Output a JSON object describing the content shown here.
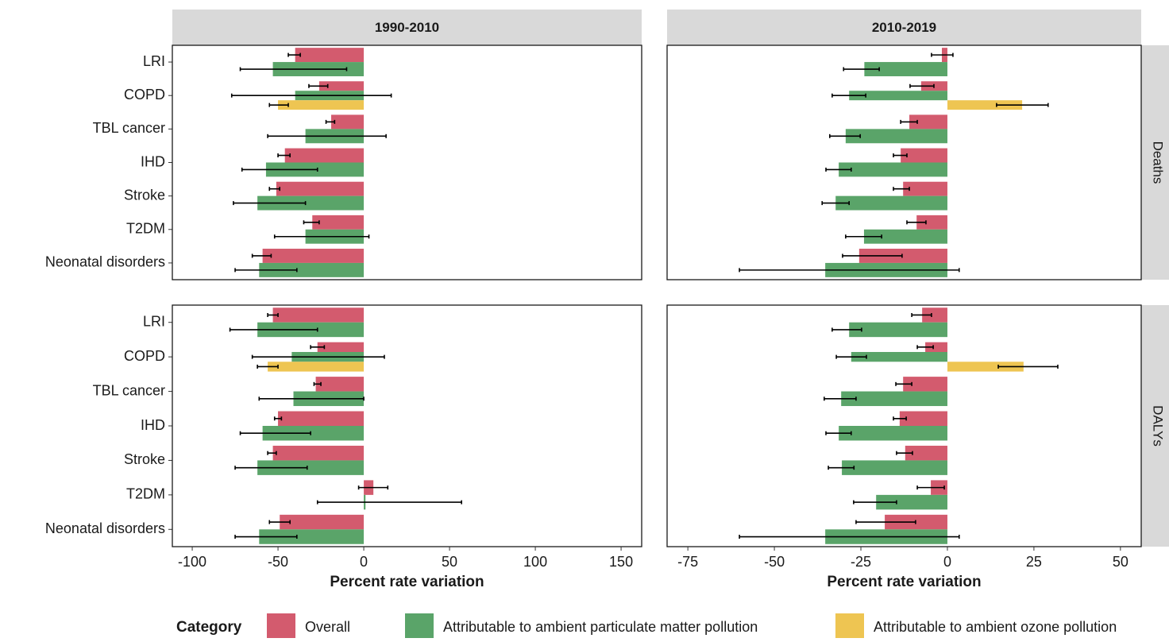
{
  "chart_data": [
    {
      "type": "bar",
      "title": "1990-2010",
      "legend_title": "Category",
      "categories": [
        "LRI",
        "COPD",
        "TBL cancer",
        "IHD",
        "Stroke",
        "T2DM",
        "Neonatal disorders"
      ],
      "xlim": [
        -111.6,
        162
      ],
      "series": [
        {
          "name": "Overall",
          "color": "#d35b6e",
          "values": [
            -40,
            -26,
            -19,
            -46,
            -51,
            -30,
            -59
          ],
          "lower": [
            -44,
            -32,
            -22,
            -50,
            -55,
            -35,
            -65
          ],
          "upper": [
            -37,
            -21,
            -17,
            -43,
            -49,
            -26,
            -54
          ]
        },
        {
          "name": "Attributable to ambient particulate matter pollution",
          "color": "#5aa469",
          "values": [
            -53,
            -40,
            -34,
            -57,
            -62,
            -34,
            -61
          ],
          "lower": [
            -72,
            -77,
            -56,
            -71,
            -76,
            -52,
            -75
          ],
          "upper": [
            -10,
            16,
            13,
            -27,
            -34,
            3,
            -39
          ]
        },
        {
          "name": "Attributable to ambient ozone pollution",
          "color": "#eec552",
          "values": [
            null,
            -50,
            null,
            null,
            null,
            null,
            null
          ],
          "lower": [
            null,
            -55,
            null,
            null,
            null,
            null,
            null
          ],
          "upper": [
            null,
            -44,
            null,
            null,
            null,
            null,
            null
          ]
        }
      ]
    },
    {
      "type": "bar",
      "title": "2010-2019",
      "row_label": "Deaths",
      "xlim": [
        -81,
        56
      ],
      "series": [
        {
          "color": "#d35b6e",
          "values": [
            -1.6,
            -7.6,
            -11,
            -13.5,
            -12.8,
            -8.9,
            -25.5
          ],
          "lower": [
            -4.6,
            -10.8,
            -13.5,
            -15.6,
            -15.6,
            -11.7,
            -30.3
          ],
          "upper": [
            1.6,
            -3.9,
            -8.7,
            -11.7,
            -11,
            -6.2,
            -13.1
          ]
        },
        {
          "color": "#5aa469",
          "values": [
            -24,
            -28.4,
            -29.4,
            -31.4,
            -32.3,
            -24.1,
            -35.3
          ],
          "lower": [
            -30,
            -33.3,
            -34,
            -35.1,
            -36.2,
            -29.4,
            -60.1
          ],
          "upper": [
            -19.7,
            -23.6,
            -25.2,
            -27.8,
            -28.4,
            -19,
            3.4
          ]
        },
        {
          "color": "#eec552",
          "values": [
            null,
            21.6,
            null,
            null,
            null,
            null,
            null
          ],
          "lower": [
            null,
            14.2,
            null,
            null,
            null,
            null,
            null
          ],
          "upper": [
            null,
            29.1,
            null,
            null,
            null,
            null,
            null
          ]
        }
      ]
    },
    {
      "type": "bar",
      "xlabel": "Percent rate variation",
      "categories": [
        "LRI",
        "COPD",
        "TBL cancer",
        "IHD",
        "Stroke",
        "T2DM",
        "Neonatal disorders"
      ],
      "xlim": [
        -111.6,
        162
      ],
      "xticks": [
        -100,
        -50,
        0,
        50,
        100,
        150
      ],
      "series": [
        {
          "color": "#d35b6e",
          "values": [
            -53,
            -27,
            -28,
            -50,
            -53,
            5.6,
            -49
          ],
          "lower": [
            -56,
            -31,
            -29,
            -52,
            -56,
            -3,
            -55
          ],
          "upper": [
            -50,
            -23,
            -25,
            -48,
            -51,
            14,
            -43
          ]
        },
        {
          "color": "#5aa469",
          "values": [
            -62,
            -42,
            -41,
            -59,
            -62,
            1,
            -61
          ],
          "lower": [
            -78,
            -65,
            -61,
            -72,
            -75,
            -27,
            -75
          ],
          "upper": [
            -27,
            12,
            0,
            -31,
            -33,
            57,
            -39
          ]
        },
        {
          "color": "#eec552",
          "values": [
            null,
            -56,
            null,
            null,
            null,
            null,
            null
          ],
          "lower": [
            null,
            -62,
            null,
            null,
            null,
            null,
            null
          ],
          "upper": [
            null,
            -50,
            null,
            null,
            null,
            null,
            null
          ]
        }
      ]
    },
    {
      "type": "bar",
      "row_label": "DALYs",
      "xlabel": "Percent rate variation",
      "xlim": [
        -81,
        56
      ],
      "xticks": [
        -75,
        -50,
        -25,
        0,
        25,
        50
      ],
      "series": [
        {
          "color": "#d35b6e",
          "values": [
            -7.3,
            -6.4,
            -12.8,
            -13.8,
            -12.2,
            -4.8,
            -18.1
          ],
          "lower": [
            -10.3,
            -8.7,
            -14.9,
            -15.6,
            -14.7,
            -8.7,
            -26.4
          ],
          "upper": [
            -4.6,
            -4.1,
            -10.3,
            -11.9,
            -10.1,
            -0.9,
            -9.2
          ]
        },
        {
          "color": "#5aa469",
          "values": [
            -28.4,
            -27.8,
            -30.7,
            -31.4,
            -30.5,
            -20.6,
            -35.3
          ],
          "lower": [
            -33.3,
            -32.1,
            -35.6,
            -35.1,
            -34.4,
            -27.1,
            -60.1
          ],
          "upper": [
            -24.8,
            -23.4,
            -26.4,
            -27.8,
            -27,
            -14.7,
            3.4
          ]
        },
        {
          "color": "#eec552",
          "values": [
            null,
            22,
            null,
            null,
            null,
            null,
            null
          ],
          "lower": [
            null,
            14.7,
            null,
            null,
            null,
            null,
            null
          ],
          "upper": [
            null,
            31.9,
            null,
            null,
            null,
            null,
            null
          ]
        }
      ]
    }
  ]
}
